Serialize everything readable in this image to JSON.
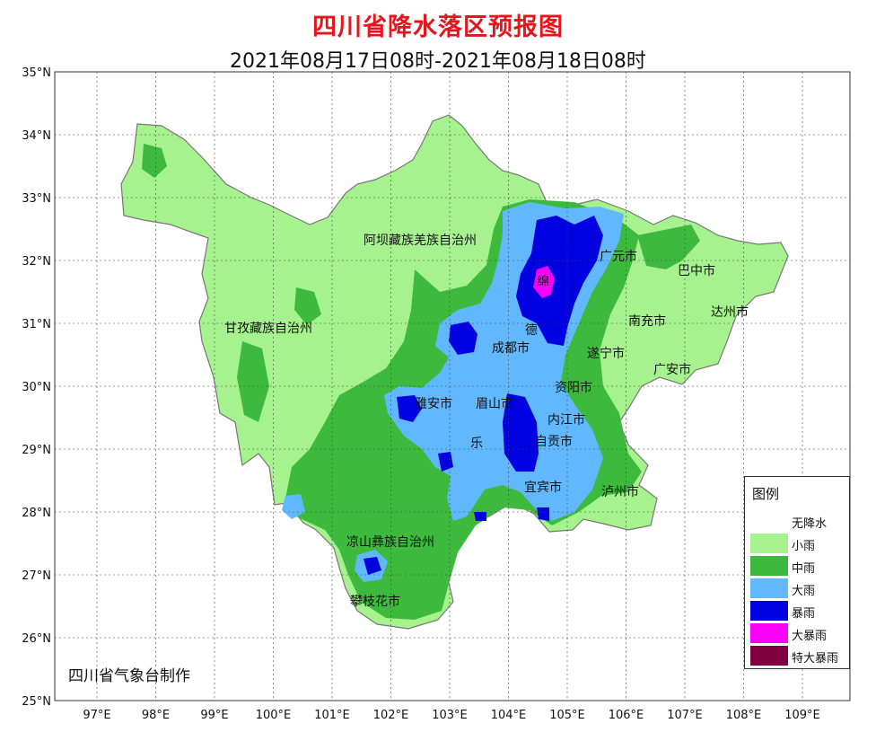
{
  "title": "四川省降水落区预报图",
  "subtitle": "2021年08月17日08时-2021年08月18日08时",
  "credit": "四川省气象台制作",
  "axes": {
    "lat_labels": [
      "35°N",
      "34°N",
      "33°N",
      "32°N",
      "31°N",
      "30°N",
      "29°N",
      "28°N",
      "27°N",
      "26°N",
      "25°N"
    ],
    "lon_labels": [
      "97°E",
      "98°E",
      "99°E",
      "100°E",
      "101°E",
      "102°E",
      "103°E",
      "104°E",
      "105°E",
      "106°E",
      "107°E",
      "108°E",
      "109°E"
    ]
  },
  "legend": {
    "title": "图例",
    "items": [
      {
        "label": "无降水",
        "color": "#ffffff"
      },
      {
        "label": "小雨",
        "color": "#a6f28f"
      },
      {
        "label": "中雨",
        "color": "#3dba3d"
      },
      {
        "label": "大雨",
        "color": "#61b8ff"
      },
      {
        "label": "暴雨",
        "color": "#0000e1"
      },
      {
        "label": "大暴雨",
        "color": "#fa00fa"
      },
      {
        "label": "特大暴雨",
        "color": "#800040"
      }
    ]
  },
  "places": [
    {
      "name": "阿坝藏族羌族自治州"
    },
    {
      "name": "甘孜藏族自治州"
    },
    {
      "name": "绵"
    },
    {
      "name": "广元市"
    },
    {
      "name": "巴中市"
    },
    {
      "name": "达州市"
    },
    {
      "name": "南充市"
    },
    {
      "name": "德"
    },
    {
      "name": "成都市"
    },
    {
      "name": "遂宁市"
    },
    {
      "name": "广安市"
    },
    {
      "name": "资阳市"
    },
    {
      "name": "雅安市"
    },
    {
      "name": "眉山市"
    },
    {
      "name": "内江市"
    },
    {
      "name": "自贡市"
    },
    {
      "name": "乐"
    },
    {
      "name": "宜宾市"
    },
    {
      "name": "泸州市"
    },
    {
      "name": "凉山彝族自治州"
    },
    {
      "name": "攀枝花市"
    }
  ]
}
